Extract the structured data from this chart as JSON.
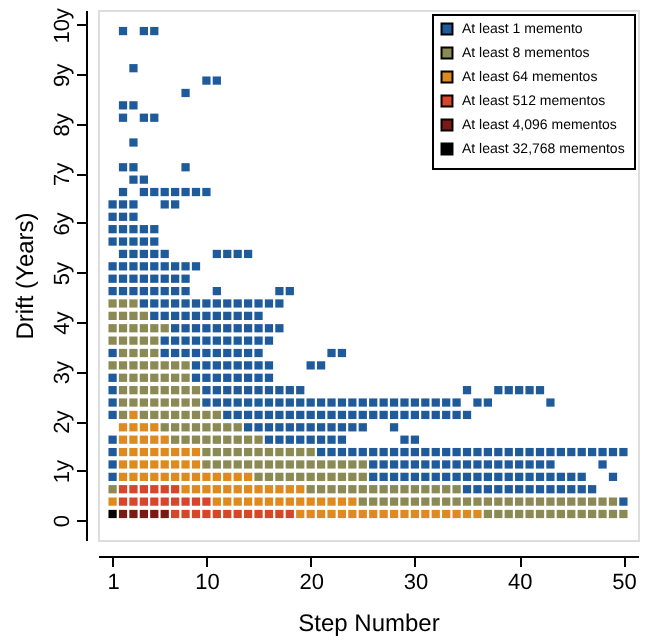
{
  "chart_data": {
    "type": "scatter",
    "xlabel": "Step Number",
    "ylabel": "Drift (Years)",
    "marker": "square",
    "grid": false,
    "legend": "top right",
    "xlim": [
      -0.4,
      51.4
    ],
    "xticks": [
      1,
      10,
      20,
      30,
      40,
      50
    ],
    "ylim": [
      -0.4,
      10.3
    ],
    "yticks": [
      0,
      {
        "value": 1,
        "label": "1y"
      },
      {
        "value": 2,
        "label": "2y"
      },
      {
        "value": 3,
        "label": "3y"
      },
      {
        "value": 4,
        "label": "4y"
      },
      {
        "value": 5,
        "label": "5y"
      },
      {
        "value": 6,
        "label": "6y"
      },
      {
        "value": 7,
        "label": "7y"
      },
      {
        "value": 8,
        "label": "8y"
      },
      {
        "value": 9,
        "label": "9y"
      },
      {
        "value": 10,
        "label": "10y"
      }
    ],
    "series": [
      {
        "name": "At least 1 memento",
        "color": "#1f5a9a",
        "x": [
          50,
          35,
          36,
          37,
          38,
          39,
          40,
          41,
          42,
          43,
          44,
          45,
          46,
          47,
          1,
          26,
          27,
          28,
          29,
          30,
          31,
          32,
          33,
          34,
          35,
          36,
          37,
          38,
          39,
          40,
          41,
          42,
          43,
          44,
          45,
          46,
          49,
          1,
          26,
          27,
          28,
          29,
          30,
          31,
          32,
          33,
          34,
          35,
          36,
          37,
          38,
          39,
          40,
          41,
          42,
          43,
          48,
          1,
          21,
          22,
          23,
          24,
          25,
          26,
          27,
          28,
          29,
          30,
          31,
          32,
          33,
          34,
          35,
          36,
          37,
          38,
          39,
          40,
          41,
          42,
          43,
          44,
          45,
          46,
          47,
          48,
          49,
          50,
          1,
          16,
          17,
          18,
          19,
          20,
          21,
          22,
          23,
          29,
          30,
          14,
          15,
          16,
          17,
          18,
          19,
          20,
          21,
          22,
          23,
          24,
          25,
          28,
          1,
          12,
          13,
          14,
          15,
          16,
          17,
          18,
          19,
          20,
          21,
          22,
          23,
          24,
          25,
          26,
          27,
          28,
          29,
          30,
          31,
          32,
          33,
          34,
          35,
          1,
          10,
          11,
          12,
          13,
          14,
          15,
          16,
          17,
          18,
          19,
          20,
          21,
          22,
          23,
          24,
          25,
          26,
          27,
          28,
          29,
          30,
          31,
          32,
          33,
          34,
          36,
          37,
          43,
          1,
          10,
          11,
          12,
          13,
          14,
          15,
          16,
          17,
          18,
          19,
          35,
          38,
          39,
          40,
          41,
          42,
          1,
          9,
          10,
          11,
          12,
          13,
          14,
          15,
          16,
          9,
          10,
          11,
          12,
          13,
          14,
          15,
          16,
          20,
          21,
          1,
          6,
          7,
          8,
          9,
          10,
          11,
          12,
          13,
          14,
          15,
          22,
          23,
          6,
          7,
          8,
          9,
          10,
          11,
          12,
          13,
          14,
          15,
          16,
          7,
          8,
          9,
          10,
          11,
          12,
          13,
          14,
          15,
          16,
          17,
          5,
          6,
          7,
          8,
          9,
          10,
          11,
          12,
          13,
          14,
          15,
          4,
          5,
          6,
          7,
          8,
          9,
          10,
          11,
          12,
          13,
          14,
          15,
          16,
          17,
          1,
          2,
          3,
          4,
          5,
          6,
          7,
          8,
          11,
          17,
          18,
          1,
          2,
          3,
          4,
          5,
          6,
          7,
          8,
          1,
          2,
          3,
          4,
          5,
          6,
          7,
          8,
          9,
          2,
          3,
          4,
          5,
          6,
          11,
          12,
          13,
          14,
          1,
          2,
          3,
          4,
          5,
          1,
          2,
          3,
          4,
          5,
          1,
          2,
          3,
          1,
          2,
          3,
          6,
          7,
          2,
          4,
          5,
          6,
          7,
          8,
          9,
          10,
          3,
          4,
          2,
          3,
          8,
          3,
          2,
          4,
          5,
          2,
          3,
          8,
          10,
          11,
          3,
          2,
          4,
          5
        ],
        "values": [
          0.375,
          0.625,
          0.625,
          0.625,
          0.625,
          0.625,
          0.625,
          0.625,
          0.625,
          0.625,
          0.625,
          0.625,
          0.625,
          0.625,
          0.875,
          0.875,
          0.875,
          0.875,
          0.875,
          0.875,
          0.875,
          0.875,
          0.875,
          0.875,
          0.875,
          0.875,
          0.875,
          0.875,
          0.875,
          0.875,
          0.875,
          0.875,
          0.875,
          0.875,
          0.875,
          0.875,
          0.875,
          1.125,
          1.125,
          1.125,
          1.125,
          1.125,
          1.125,
          1.125,
          1.125,
          1.125,
          1.125,
          1.125,
          1.125,
          1.125,
          1.125,
          1.125,
          1.125,
          1.125,
          1.125,
          1.125,
          1.125,
          1.375,
          1.375,
          1.375,
          1.375,
          1.375,
          1.375,
          1.375,
          1.375,
          1.375,
          1.375,
          1.375,
          1.375,
          1.375,
          1.375,
          1.375,
          1.375,
          1.375,
          1.375,
          1.375,
          1.375,
          1.375,
          1.375,
          1.375,
          1.375,
          1.375,
          1.375,
          1.375,
          1.375,
          1.375,
          1.375,
          1.375,
          1.625,
          1.625,
          1.625,
          1.625,
          1.625,
          1.625,
          1.625,
          1.625,
          1.625,
          1.625,
          1.625,
          1.875,
          1.875,
          1.875,
          1.875,
          1.875,
          1.875,
          1.875,
          1.875,
          1.875,
          1.875,
          1.875,
          1.875,
          1.875,
          2.125,
          2.125,
          2.125,
          2.125,
          2.125,
          2.125,
          2.125,
          2.125,
          2.125,
          2.125,
          2.125,
          2.125,
          2.125,
          2.125,
          2.125,
          2.125,
          2.125,
          2.125,
          2.125,
          2.125,
          2.125,
          2.125,
          2.125,
          2.125,
          2.125,
          2.375,
          2.375,
          2.375,
          2.375,
          2.375,
          2.375,
          2.375,
          2.375,
          2.375,
          2.375,
          2.375,
          2.375,
          2.375,
          2.375,
          2.375,
          2.375,
          2.375,
          2.375,
          2.375,
          2.375,
          2.375,
          2.375,
          2.375,
          2.375,
          2.375,
          2.375,
          2.375,
          2.375,
          2.375,
          2.625,
          2.625,
          2.625,
          2.625,
          2.625,
          2.625,
          2.625,
          2.625,
          2.625,
          2.625,
          2.625,
          2.625,
          2.625,
          2.625,
          2.625,
          2.625,
          2.625,
          2.875,
          2.875,
          2.875,
          2.875,
          2.875,
          2.875,
          2.875,
          2.875,
          2.875,
          3.125,
          3.125,
          3.125,
          3.125,
          3.125,
          3.125,
          3.125,
          3.125,
          3.125,
          3.125,
          3.375,
          3.375,
          3.375,
          3.375,
          3.375,
          3.375,
          3.375,
          3.375,
          3.375,
          3.375,
          3.375,
          3.375,
          3.375,
          3.625,
          3.625,
          3.625,
          3.625,
          3.625,
          3.625,
          3.625,
          3.625,
          3.625,
          3.625,
          3.625,
          3.875,
          3.875,
          3.875,
          3.875,
          3.875,
          3.875,
          3.875,
          3.875,
          3.875,
          3.875,
          3.875,
          4.125,
          4.125,
          4.125,
          4.125,
          4.125,
          4.125,
          4.125,
          4.125,
          4.125,
          4.125,
          4.125,
          4.375,
          4.375,
          4.375,
          4.375,
          4.375,
          4.375,
          4.375,
          4.375,
          4.375,
          4.375,
          4.375,
          4.375,
          4.375,
          4.375,
          4.625,
          4.625,
          4.625,
          4.625,
          4.625,
          4.625,
          4.625,
          4.625,
          4.625,
          4.625,
          4.625,
          4.875,
          4.875,
          4.875,
          4.875,
          4.875,
          4.875,
          4.875,
          4.875,
          5.125,
          5.125,
          5.125,
          5.125,
          5.125,
          5.125,
          5.125,
          5.125,
          5.125,
          5.375,
          5.375,
          5.375,
          5.375,
          5.375,
          5.375,
          5.375,
          5.375,
          5.375,
          5.625,
          5.625,
          5.625,
          5.625,
          5.625,
          5.875,
          5.875,
          5.875,
          5.875,
          5.875,
          6.125,
          6.125,
          6.125,
          6.375,
          6.375,
          6.375,
          6.375,
          6.375,
          6.625,
          6.625,
          6.625,
          6.625,
          6.625,
          6.625,
          6.625,
          6.625,
          6.875,
          6.875,
          7.125,
          7.125,
          7.125,
          7.625,
          8.125,
          8.125,
          8.125,
          8.375,
          8.375,
          8.625,
          8.875,
          8.875,
          9.125,
          9.875,
          9.875,
          9.875
        ]
      },
      {
        "name": "At least 8 mementos",
        "color": "#8b8a55",
        "x": [
          37,
          38,
          39,
          40,
          41,
          42,
          43,
          44,
          45,
          46,
          47,
          48,
          49,
          50,
          25,
          26,
          27,
          28,
          29,
          30,
          31,
          32,
          33,
          34,
          35,
          36,
          37,
          38,
          39,
          40,
          41,
          42,
          43,
          44,
          45,
          46,
          47,
          48,
          49,
          1,
          20,
          21,
          22,
          23,
          24,
          25,
          26,
          27,
          28,
          29,
          30,
          31,
          32,
          33,
          34,
          15,
          16,
          17,
          18,
          19,
          20,
          21,
          22,
          23,
          24,
          25,
          10,
          11,
          12,
          13,
          14,
          15,
          16,
          17,
          18,
          19,
          20,
          21,
          22,
          23,
          24,
          25,
          10,
          11,
          12,
          13,
          14,
          15,
          16,
          17,
          18,
          19,
          20,
          7,
          8,
          9,
          10,
          11,
          12,
          13,
          14,
          15,
          6,
          7,
          8,
          9,
          10,
          11,
          12,
          13,
          2,
          4,
          5,
          6,
          7,
          8,
          9,
          10,
          11,
          2,
          3,
          4,
          5,
          6,
          7,
          8,
          9,
          2,
          3,
          4,
          5,
          6,
          7,
          8,
          9,
          2,
          3,
          4,
          5,
          6,
          7,
          8,
          1,
          2,
          3,
          4,
          5,
          6,
          7,
          8,
          2,
          3,
          4,
          5,
          1,
          2,
          3,
          4,
          5,
          1,
          2,
          3,
          4,
          5,
          6,
          1,
          2,
          3,
          4,
          1,
          2,
          3
        ],
        "values": [
          0.125,
          0.125,
          0.125,
          0.125,
          0.125,
          0.125,
          0.125,
          0.125,
          0.125,
          0.125,
          0.125,
          0.125,
          0.125,
          0.125,
          0.375,
          0.375,
          0.375,
          0.375,
          0.375,
          0.375,
          0.375,
          0.375,
          0.375,
          0.375,
          0.375,
          0.375,
          0.375,
          0.375,
          0.375,
          0.375,
          0.375,
          0.375,
          0.375,
          0.375,
          0.375,
          0.375,
          0.375,
          0.375,
          0.375,
          0.625,
          0.625,
          0.625,
          0.625,
          0.625,
          0.625,
          0.625,
          0.625,
          0.625,
          0.625,
          0.625,
          0.625,
          0.625,
          0.625,
          0.625,
          0.625,
          0.875,
          0.875,
          0.875,
          0.875,
          0.875,
          0.875,
          0.875,
          0.875,
          0.875,
          0.875,
          0.875,
          1.125,
          1.125,
          1.125,
          1.125,
          1.125,
          1.125,
          1.125,
          1.125,
          1.125,
          1.125,
          1.125,
          1.125,
          1.125,
          1.125,
          1.125,
          1.125,
          1.375,
          1.375,
          1.375,
          1.375,
          1.375,
          1.375,
          1.375,
          1.375,
          1.375,
          1.375,
          1.375,
          1.625,
          1.625,
          1.625,
          1.625,
          1.625,
          1.625,
          1.625,
          1.625,
          1.625,
          1.875,
          1.875,
          1.875,
          1.875,
          1.875,
          1.875,
          1.875,
          1.875,
          2.125,
          2.125,
          2.125,
          2.125,
          2.125,
          2.125,
          2.125,
          2.125,
          2.125,
          2.375,
          2.375,
          2.375,
          2.375,
          2.375,
          2.375,
          2.375,
          2.375,
          2.625,
          2.625,
          2.625,
          2.625,
          2.625,
          2.625,
          2.625,
          2.625,
          2.875,
          2.875,
          2.875,
          2.875,
          2.875,
          2.875,
          2.875,
          3.125,
          3.125,
          3.125,
          3.125,
          3.125,
          3.125,
          3.125,
          3.125,
          3.375,
          3.375,
          3.375,
          3.375,
          3.625,
          3.625,
          3.625,
          3.625,
          3.625,
          3.875,
          3.875,
          3.875,
          3.875,
          3.875,
          3.875,
          4.125,
          4.125,
          4.125,
          4.125,
          4.375,
          4.375,
          4.375
        ]
      },
      {
        "name": "At least 64 mementos",
        "color": "#de8a1e",
        "x": [
          19,
          20,
          21,
          22,
          23,
          24,
          25,
          26,
          27,
          28,
          29,
          30,
          31,
          32,
          33,
          34,
          35,
          36,
          1,
          11,
          12,
          13,
          14,
          15,
          16,
          17,
          18,
          19,
          20,
          21,
          22,
          23,
          24,
          8,
          9,
          10,
          11,
          12,
          13,
          14,
          15,
          16,
          17,
          18,
          19,
          2,
          3,
          4,
          5,
          6,
          7,
          8,
          9,
          10,
          11,
          12,
          13,
          14,
          2,
          3,
          4,
          5,
          6,
          7,
          8,
          9,
          2,
          3,
          4,
          5,
          6,
          7,
          8,
          9,
          2,
          3,
          4,
          5,
          6,
          2,
          3,
          4,
          5,
          3
        ],
        "values": [
          0.125,
          0.125,
          0.125,
          0.125,
          0.125,
          0.125,
          0.125,
          0.125,
          0.125,
          0.125,
          0.125,
          0.125,
          0.125,
          0.125,
          0.125,
          0.125,
          0.125,
          0.125,
          0.375,
          0.375,
          0.375,
          0.375,
          0.375,
          0.375,
          0.375,
          0.375,
          0.375,
          0.375,
          0.375,
          0.375,
          0.375,
          0.375,
          0.375,
          0.625,
          0.625,
          0.625,
          0.625,
          0.625,
          0.625,
          0.625,
          0.625,
          0.625,
          0.625,
          0.625,
          0.625,
          0.875,
          0.875,
          0.875,
          0.875,
          0.875,
          0.875,
          0.875,
          0.875,
          0.875,
          0.875,
          0.875,
          0.875,
          0.875,
          1.125,
          1.125,
          1.125,
          1.125,
          1.125,
          1.125,
          1.125,
          1.125,
          1.375,
          1.375,
          1.375,
          1.375,
          1.375,
          1.375,
          1.375,
          1.375,
          1.625,
          1.625,
          1.625,
          1.625,
          1.625,
          1.875,
          1.875,
          1.875,
          1.875,
          2.125
        ]
      },
      {
        "name": "At least 512 mementos",
        "color": "#d9452b",
        "x": [
          7,
          8,
          9,
          10,
          11,
          12,
          13,
          14,
          15,
          16,
          17,
          18,
          2,
          3,
          4,
          5,
          6,
          7,
          8,
          9,
          10,
          2,
          3,
          4,
          5,
          6,
          7
        ],
        "values": [
          0.125,
          0.125,
          0.125,
          0.125,
          0.125,
          0.125,
          0.125,
          0.125,
          0.125,
          0.125,
          0.125,
          0.125,
          0.375,
          0.375,
          0.375,
          0.375,
          0.375,
          0.375,
          0.375,
          0.375,
          0.375,
          0.625,
          0.625,
          0.625,
          0.625,
          0.625,
          0.625
        ]
      },
      {
        "name": "At least 4,096 mementos",
        "color": "#7a1a14",
        "x": [
          2,
          3,
          4,
          5,
          6
        ],
        "values": [
          0.125,
          0.125,
          0.125,
          0.125,
          0.125
        ]
      },
      {
        "name": "At least 32,768 mementos",
        "color": "#000000",
        "x": [
          1
        ],
        "values": [
          0.125
        ]
      }
    ]
  }
}
